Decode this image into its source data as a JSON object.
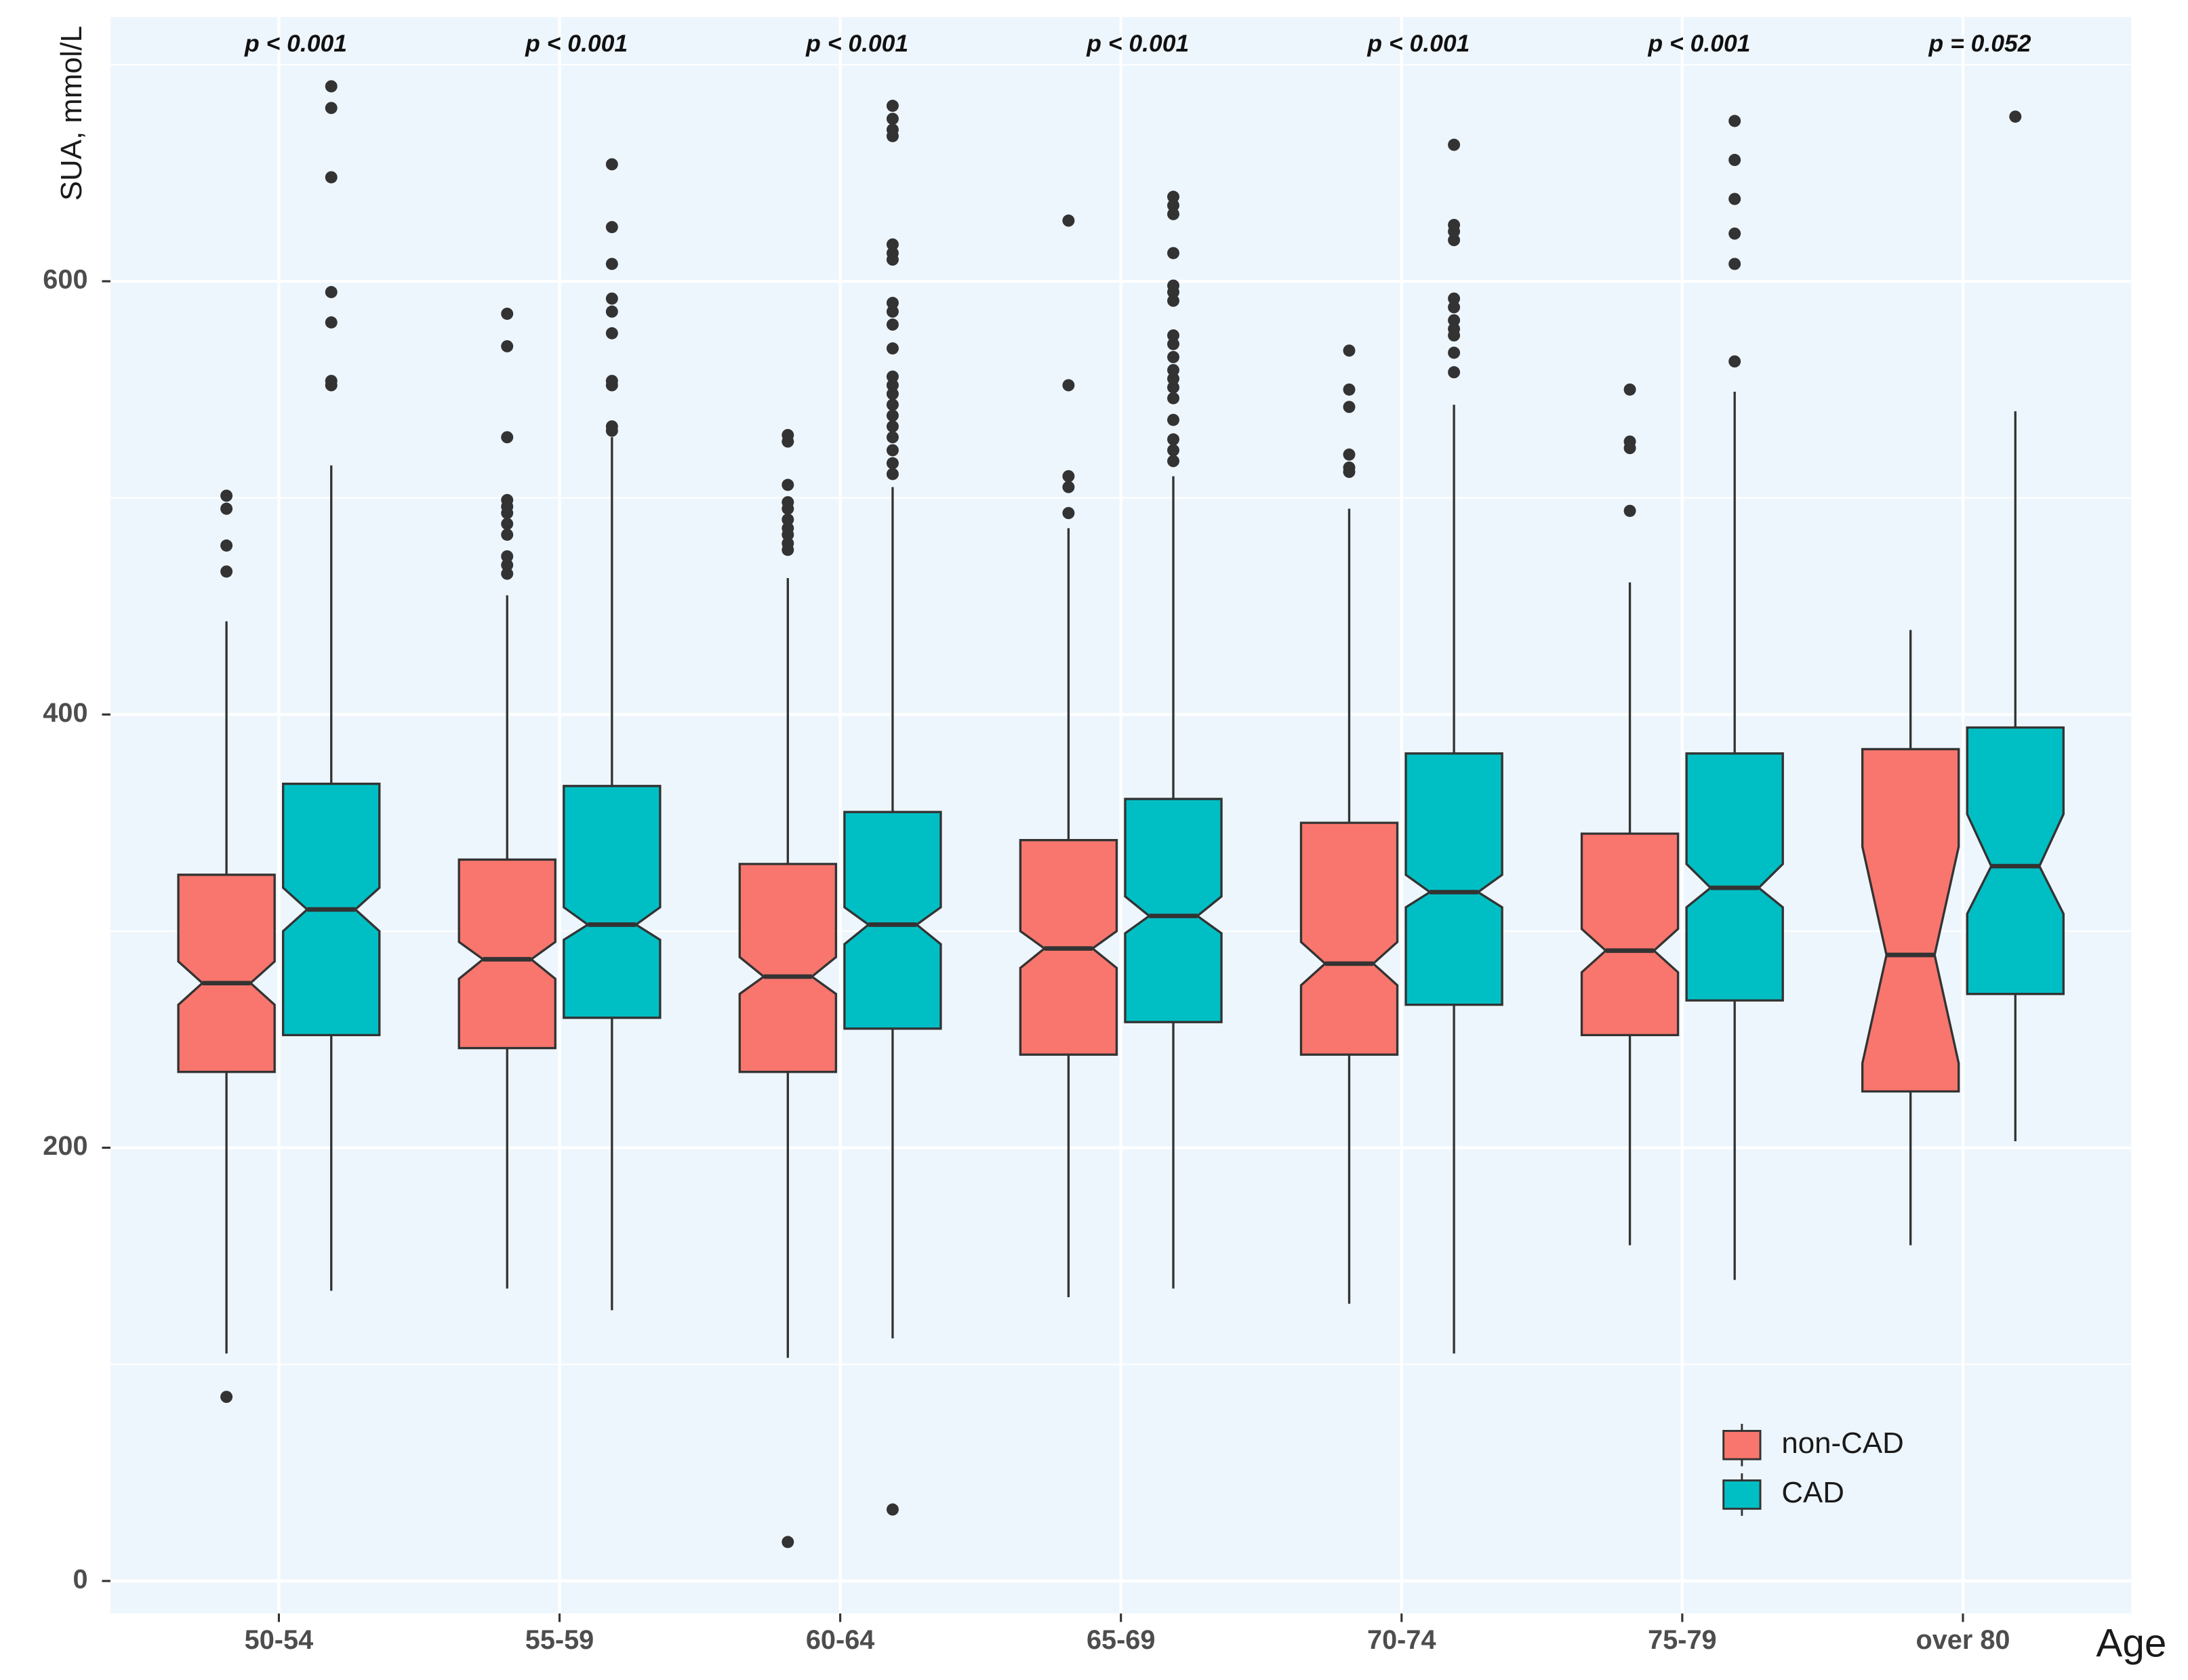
{
  "chart_data": {
    "type": "boxplot",
    "notch": true,
    "x_label": "Age",
    "y_label": "SUA, mmol/L",
    "categories": [
      "50-54",
      "55-59",
      "60-64",
      "65-69",
      "70-74",
      "75-79",
      "over 80"
    ],
    "annotations": [
      "p < 0.001",
      "p < 0.001",
      "p < 0.001",
      "p < 0.001",
      "p < 0.001",
      "p < 0.001",
      "p = 0.052"
    ],
    "ylim": [
      -15,
      722
    ],
    "yticks": [
      0,
      200,
      400,
      600
    ],
    "y_minor_ticks": [
      100,
      300,
      500,
      700
    ],
    "grid": true,
    "legend_position": "bottom-right",
    "series": [
      {
        "name": "non-CAD",
        "color": "#F8766D",
        "boxes": [
          {
            "whisker_low": 105,
            "q1": 235,
            "notch_low": 266,
            "median": 276,
            "notch_high": 286,
            "q3": 326,
            "whisker_high": 443,
            "outliers": [
              85,
              466,
              478,
              495,
              501
            ]
          },
          {
            "whisker_low": 135,
            "q1": 246,
            "notch_low": 278,
            "median": 287,
            "notch_high": 295,
            "q3": 333,
            "whisker_high": 455,
            "outliers": [
              465,
              469,
              473,
              483,
              488,
              493,
              496,
              499,
              528,
              570,
              585
            ]
          },
          {
            "whisker_low": 103,
            "q1": 235,
            "notch_low": 271,
            "median": 279,
            "notch_high": 288,
            "q3": 331,
            "whisker_high": 463,
            "outliers": [
              18,
              476,
              479,
              483,
              486,
              490,
              495,
              498,
              506,
              526,
              529
            ]
          },
          {
            "whisker_low": 131,
            "q1": 243,
            "notch_low": 283,
            "median": 292,
            "notch_high": 300,
            "q3": 342,
            "whisker_high": 486,
            "outliers": [
              493,
              505,
              510,
              552,
              628
            ]
          },
          {
            "whisker_low": 128,
            "q1": 243,
            "notch_low": 275,
            "median": 285,
            "notch_high": 295,
            "q3": 350,
            "whisker_high": 495,
            "outliers": [
              512,
              514,
              520,
              542,
              550,
              568
            ]
          },
          {
            "whisker_low": 155,
            "q1": 252,
            "notch_low": 281,
            "median": 291,
            "notch_high": 301,
            "q3": 345,
            "whisker_high": 461,
            "outliers": [
              494,
              523,
              526,
              550
            ]
          },
          {
            "whisker_low": 155,
            "q1": 226,
            "notch_low": 239,
            "median": 289,
            "notch_high": 339,
            "q3": 384,
            "whisker_high": 439,
            "outliers": []
          }
        ]
      },
      {
        "name": "CAD",
        "color": "#00BFC4",
        "boxes": [
          {
            "whisker_low": 134,
            "q1": 252,
            "notch_low": 300,
            "median": 310,
            "notch_high": 320,
            "q3": 368,
            "whisker_high": 515,
            "outliers": [
              552,
              554,
              581,
              595,
              648,
              680,
              690
            ]
          },
          {
            "whisker_low": 125,
            "q1": 260,
            "notch_low": 296,
            "median": 303,
            "notch_high": 311,
            "q3": 367,
            "whisker_high": 528,
            "outliers": [
              531,
              533,
              552,
              554,
              576,
              586,
              592,
              608,
              625,
              654
            ]
          },
          {
            "whisker_low": 112,
            "q1": 255,
            "notch_low": 294,
            "median": 303,
            "notch_high": 311,
            "q3": 355,
            "whisker_high": 505,
            "outliers": [
              33,
              511,
              516,
              522,
              528,
              533,
              538,
              543,
              548,
              552,
              556,
              569,
              580,
              586,
              590,
              610,
              613,
              617,
              667,
              670,
              675,
              681
            ]
          },
          {
            "whisker_low": 135,
            "q1": 258,
            "notch_low": 299,
            "median": 307,
            "notch_high": 316,
            "q3": 361,
            "whisker_high": 510,
            "outliers": [
              517,
              522,
              527,
              536,
              546,
              551,
              555,
              559,
              565,
              571,
              575,
              591,
              595,
              598,
              613,
              631,
              635,
              639
            ]
          },
          {
            "whisker_low": 105,
            "q1": 266,
            "notch_low": 311,
            "median": 318,
            "notch_high": 326,
            "q3": 382,
            "whisker_high": 543,
            "outliers": [
              558,
              567,
              575,
              578,
              582,
              588,
              592,
              619,
              623,
              626,
              663
            ]
          },
          {
            "whisker_low": 139,
            "q1": 268,
            "notch_low": 311,
            "median": 320,
            "notch_high": 331,
            "q3": 382,
            "whisker_high": 549,
            "outliers": [
              563,
              608,
              622,
              638,
              656,
              674
            ]
          },
          {
            "whisker_low": 203,
            "q1": 271,
            "notch_low": 308,
            "median": 330,
            "notch_high": 354,
            "q3": 394,
            "whisker_high": 540,
            "outliers": [
              676
            ]
          }
        ]
      }
    ]
  }
}
